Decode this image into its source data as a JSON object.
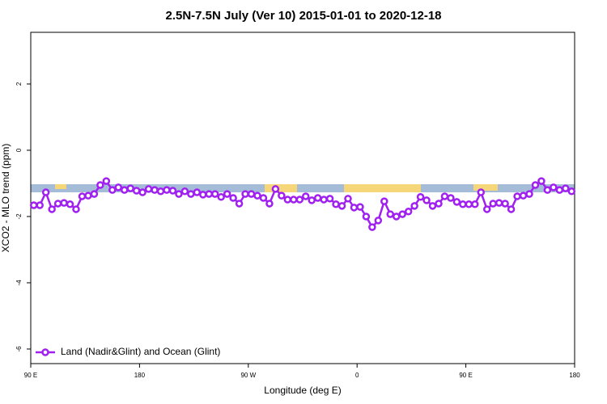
{
  "chart_data": {
    "type": "line",
    "title": "2.5N-7.5N July (Ver 10)   2015-01-01 to 2020-12-18",
    "x_label": "Longitude (deg E)",
    "y_label": "XCO2 - MLO trend (ppm)",
    "xlim": [
      90,
      540
    ],
    "ylim": [
      -6.44,
      3.56
    ],
    "xticks": [
      {
        "value": 90,
        "label": "90 E"
      },
      180,
      {
        "value": 270,
        "label": "90 W"
      },
      {
        "value": 360,
        "label": "0"
      },
      {
        "value": 450,
        "label": "90 E"
      },
      {
        "value": 540,
        "label": "180"
      }
    ],
    "yticks": [
      2,
      0,
      -2,
      -4,
      -6
    ],
    "legend": "bottom-left",
    "x": [
      92.5,
      97.5,
      102.5,
      107.5,
      112.5,
      117.5,
      122.5,
      127.5,
      132.5,
      137.5,
      142.5,
      147.5,
      152.5,
      157.5,
      162.5,
      167.5,
      172.5,
      177.5,
      182.5,
      187.5,
      192.5,
      197.5,
      202.5,
      207.5,
      212.5,
      217.5,
      222.5,
      227.5,
      232.5,
      237.5,
      242.5,
      247.5,
      252.5,
      257.5,
      262.5,
      267.5,
      272.5,
      277.5,
      282.5,
      287.5,
      292.5,
      297.5,
      302.5,
      307.5,
      312.5,
      317.5,
      322.5,
      327.5,
      332.5,
      337.5,
      342.5,
      347.5,
      352.5,
      357.5,
      362.5,
      367.5,
      372.5,
      377.5,
      382.5,
      387.5,
      392.5,
      397.5,
      402.5,
      407.5,
      412.5,
      417.5,
      422.5,
      427.5,
      432.5,
      437.5,
      442.5,
      447.5,
      452.5,
      457.5,
      462.5,
      467.5,
      472.5,
      477.5,
      482.5,
      487.5,
      492.5,
      497.5,
      502.5,
      507.5,
      512.5,
      517.5,
      522.5,
      527.5,
      532.5,
      537.5
    ],
    "series": [
      {
        "name": "Land (Nadir&Glint) and Ocean (Glint)",
        "color": "#a020f0",
        "values": [
          -1.66,
          -1.66,
          -1.27,
          -1.78,
          -1.61,
          -1.59,
          -1.63,
          -1.78,
          -1.39,
          -1.37,
          -1.32,
          -1.05,
          -0.93,
          -1.2,
          -1.12,
          -1.2,
          -1.15,
          -1.22,
          -1.27,
          -1.17,
          -1.2,
          -1.24,
          -1.2,
          -1.22,
          -1.32,
          -1.24,
          -1.32,
          -1.27,
          -1.34,
          -1.32,
          -1.32,
          -1.41,
          -1.32,
          -1.44,
          -1.61,
          -1.32,
          -1.32,
          -1.37,
          -1.44,
          -1.61,
          -1.17,
          -1.37,
          -1.49,
          -1.49,
          -1.49,
          -1.39,
          -1.51,
          -1.44,
          -1.49,
          -1.46,
          -1.63,
          -1.68,
          -1.46,
          -1.73,
          -1.71,
          -2.0,
          -2.32,
          -2.12,
          -1.54,
          -1.93,
          -2.0,
          -1.93,
          -1.85,
          -1.68,
          -1.41,
          -1.51,
          -1.68,
          -1.61,
          -1.39,
          -1.44,
          -1.56,
          -1.63,
          -1.63,
          -1.63,
          -1.27,
          -1.78,
          -1.61,
          -1.59,
          -1.61,
          -1.78,
          -1.39,
          -1.37,
          -1.32,
          -1.05,
          -0.93,
          -1.2,
          -1.12,
          -1.2,
          -1.15,
          -1.24
        ]
      }
    ]
  }
}
